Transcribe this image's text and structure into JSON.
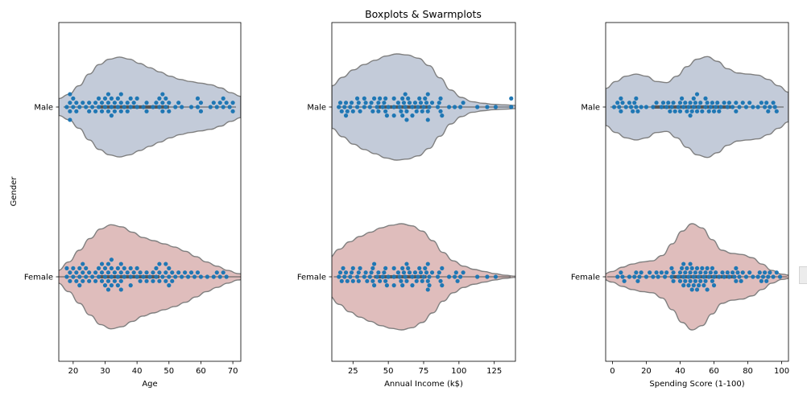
{
  "figure": {
    "title": "Boxplots & Swarmplots",
    "colors": {
      "male": "#c3cbd9",
      "female": "#dfbdbc",
      "violin_edge": "#7f7f7f",
      "dot": "#1f77b4",
      "box_line": "#555555"
    }
  },
  "chart_data": [
    {
      "type": "violin+swarm",
      "xlabel": "Age",
      "ylabel": "Gender",
      "xlim": [
        15.5,
        72.5
      ],
      "xticks": [
        20,
        30,
        40,
        50,
        60,
        70
      ],
      "tick_labels": [
        "20",
        "30",
        "40",
        "50",
        "60",
        "70"
      ],
      "categories": [
        "Male",
        "Female"
      ],
      "violins": [
        {
          "name": "Male",
          "support": [
            15.5,
            72.5
          ],
          "density": [
            0.16,
            0.24,
            0.4,
            0.62,
            0.8,
            0.9,
            0.94,
            0.9,
            0.82,
            0.74,
            0.66,
            0.58,
            0.52,
            0.48,
            0.45,
            0.42,
            0.36,
            0.27,
            0.2
          ]
        },
        {
          "name": "Female",
          "support": [
            12,
            75
          ],
          "density": [
            0.04,
            0.12,
            0.28,
            0.5,
            0.72,
            0.9,
            0.98,
            0.94,
            0.84,
            0.74,
            0.68,
            0.62,
            0.56,
            0.48,
            0.38,
            0.28,
            0.2,
            0.12,
            0.06,
            0.02
          ]
        }
      ],
      "box": [
        {
          "name": "Male",
          "q1": 28,
          "q3": 50
        },
        {
          "name": "Female",
          "q1": 28,
          "q3": 47
        }
      ],
      "points": {
        "Male": [
          18,
          19,
          19,
          19,
          19,
          20,
          20,
          21,
          21,
          22,
          23,
          24,
          25,
          25,
          26,
          27,
          27,
          28,
          28,
          29,
          29,
          30,
          30,
          31,
          31,
          31,
          32,
          32,
          32,
          33,
          33,
          34,
          34,
          35,
          35,
          35,
          36,
          37,
          37,
          38,
          38,
          39,
          40,
          40,
          42,
          43,
          43,
          45,
          46,
          47,
          47,
          48,
          48,
          48,
          49,
          49,
          50,
          50,
          52,
          53,
          54,
          57,
          59,
          59,
          60,
          60,
          63,
          64,
          65,
          66,
          67,
          67,
          68,
          69,
          70,
          70
        ],
        "Female": [
          18,
          18,
          19,
          19,
          20,
          20,
          21,
          21,
          22,
          22,
          22,
          23,
          23,
          23,
          24,
          24,
          25,
          25,
          26,
          27,
          27,
          28,
          28,
          29,
          29,
          29,
          30,
          30,
          30,
          31,
          31,
          31,
          31,
          32,
          32,
          32,
          32,
          33,
          33,
          34,
          34,
          34,
          35,
          35,
          35,
          35,
          36,
          36,
          37,
          38,
          38,
          38,
          39,
          40,
          40,
          41,
          41,
          42,
          43,
          43,
          44,
          45,
          45,
          46,
          46,
          47,
          47,
          47,
          48,
          49,
          49,
          49,
          50,
          50,
          50,
          51,
          51,
          52,
          53,
          54,
          55,
          56,
          57,
          58,
          59,
          60,
          62,
          64,
          65,
          66,
          67,
          68
        ]
      }
    },
    {
      "type": "violin+swarm",
      "xlabel": "Annual Income (k$)",
      "ylabel": "",
      "xlim": [
        10,
        140
      ],
      "xticks": [
        25,
        50,
        75,
        100,
        125
      ],
      "tick_labels": [
        "25",
        "50",
        "75",
        "100",
        "125"
      ],
      "categories": [
        "Male",
        "Female"
      ],
      "violins": [
        {
          "name": "Male",
          "support": [
            10,
            140
          ],
          "density": [
            0.4,
            0.56,
            0.7,
            0.8,
            0.88,
            0.96,
            1.0,
            0.98,
            0.92,
            0.78,
            0.55,
            0.32,
            0.18,
            0.1,
            0.07,
            0.05,
            0.04,
            0.03
          ]
        },
        {
          "name": "Female",
          "support": [
            8,
            140
          ],
          "density": [
            0.36,
            0.52,
            0.66,
            0.76,
            0.84,
            0.92,
            0.97,
            1.0,
            0.96,
            0.86,
            0.68,
            0.46,
            0.3,
            0.2,
            0.14,
            0.1,
            0.06,
            0.03,
            0.01
          ]
        }
      ],
      "box": [
        {
          "name": "Male",
          "q1": 42,
          "q3": 78
        },
        {
          "name": "Female",
          "q1": 40,
          "q3": 77
        }
      ],
      "points": {
        "Male": [
          15,
          16,
          17,
          19,
          20,
          20,
          21,
          23,
          24,
          25,
          28,
          28,
          29,
          30,
          33,
          33,
          34,
          37,
          38,
          39,
          40,
          42,
          43,
          43,
          44,
          46,
          47,
          48,
          48,
          49,
          50,
          54,
          54,
          54,
          57,
          58,
          59,
          60,
          60,
          61,
          62,
          62,
          63,
          63,
          64,
          65,
          67,
          67,
          69,
          70,
          71,
          72,
          73,
          74,
          75,
          76,
          77,
          78,
          78,
          78,
          79,
          81,
          85,
          86,
          87,
          87,
          88,
          93,
          97,
          101,
          103,
          113,
          120,
          126,
          137,
          137
        ],
        "Female": [
          15,
          16,
          17,
          18,
          19,
          20,
          21,
          23,
          24,
          25,
          25,
          28,
          29,
          29,
          30,
          33,
          34,
          35,
          37,
          38,
          39,
          39,
          40,
          40,
          42,
          43,
          44,
          46,
          47,
          48,
          48,
          49,
          50,
          54,
          54,
          54,
          57,
          58,
          59,
          60,
          60,
          61,
          62,
          63,
          63,
          64,
          65,
          67,
          67,
          69,
          70,
          71,
          72,
          73,
          74,
          75,
          76,
          77,
          78,
          78,
          78,
          79,
          79,
          81,
          85,
          86,
          87,
          88,
          88,
          93,
          97,
          98,
          99,
          101,
          103,
          113,
          120,
          126
        ]
      }
    },
    {
      "type": "violin+swarm",
      "xlabel": "Spending Score (1-100)",
      "ylabel": "",
      "xlim": [
        -4,
        104
      ],
      "xticks": [
        0,
        20,
        40,
        60,
        80,
        100
      ],
      "tick_labels": [
        "0",
        "20",
        "40",
        "60",
        "80",
        "100"
      ],
      "categories": [
        "Male",
        "Female"
      ],
      "violins": [
        {
          "name": "Male",
          "support": [
            -4,
            104
          ],
          "density": [
            0.35,
            0.48,
            0.58,
            0.62,
            0.58,
            0.48,
            0.46,
            0.58,
            0.76,
            0.9,
            0.95,
            0.86,
            0.72,
            0.64,
            0.62,
            0.6,
            0.52,
            0.4,
            0.28
          ]
        },
        {
          "name": "Female",
          "support": [
            -6,
            106
          ],
          "density": [
            0.04,
            0.1,
            0.18,
            0.24,
            0.28,
            0.3,
            0.4,
            0.62,
            0.86,
            1.0,
            0.92,
            0.7,
            0.5,
            0.44,
            0.42,
            0.36,
            0.24,
            0.12,
            0.05,
            0.02
          ]
        }
      ],
      "box": [
        {
          "name": "Male",
          "q1": 24,
          "q3": 70
        },
        {
          "name": "Female",
          "q1": 35,
          "q3": 73
        }
      ],
      "points": {
        "Male": [
          1,
          3,
          4,
          5,
          5,
          6,
          8,
          10,
          11,
          12,
          13,
          14,
          14,
          15,
          17,
          20,
          24,
          26,
          29,
          30,
          32,
          33,
          34,
          35,
          36,
          37,
          39,
          40,
          40,
          41,
          42,
          43,
          44,
          45,
          46,
          46,
          47,
          48,
          48,
          49,
          50,
          50,
          51,
          52,
          53,
          55,
          55,
          56,
          57,
          58,
          59,
          60,
          61,
          62,
          63,
          64,
          66,
          68,
          69,
          71,
          73,
          73,
          75,
          77,
          79,
          81,
          83,
          86,
          88,
          90,
          91,
          92,
          93,
          95,
          96,
          97
        ],
        "Female": [
          3,
          5,
          6,
          7,
          10,
          13,
          14,
          15,
          16,
          17,
          20,
          22,
          24,
          26,
          27,
          29,
          31,
          32,
          35,
          35,
          36,
          36,
          39,
          40,
          40,
          41,
          42,
          42,
          42,
          43,
          43,
          44,
          45,
          45,
          46,
          46,
          46,
          47,
          47,
          48,
          48,
          49,
          49,
          50,
          50,
          51,
          51,
          52,
          52,
          53,
          54,
          54,
          55,
          55,
          56,
          56,
          57,
          58,
          59,
          59,
          60,
          60,
          61,
          63,
          65,
          66,
          68,
          69,
          71,
          72,
          73,
          73,
          74,
          75,
          76,
          77,
          79,
          81,
          83,
          86,
          87,
          88,
          89,
          90,
          91,
          92,
          93,
          95,
          97,
          99
        ]
      }
    }
  ]
}
